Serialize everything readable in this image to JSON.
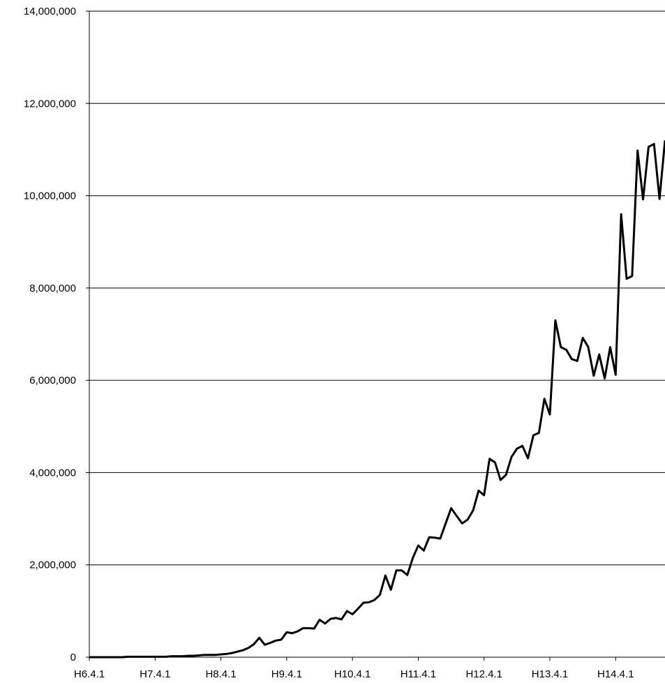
{
  "chart_data": {
    "type": "line",
    "title": "",
    "xlabel": "",
    "ylabel": "",
    "ylim": [
      0,
      14000000
    ],
    "yticks": [
      0,
      2000000,
      4000000,
      6000000,
      8000000,
      10000000,
      12000000,
      14000000
    ],
    "ytick_labels": [
      "0",
      "2,000,000",
      "4,000,000",
      "6,000,000",
      "8,000,000",
      "10,000,000",
      "12,000,000",
      "14,000,000"
    ],
    "xtick_labels": [
      "H6.4.1",
      "H7.4.1",
      "H8.4.1",
      "H9.4.1",
      "H10.4.1",
      "H11.4.1",
      "H12.4.1",
      "H13.4.1",
      "H14.4.1"
    ],
    "grid": true,
    "legend": "none",
    "line_color": "#000000",
    "series": [
      {
        "values": [
          0,
          0,
          0,
          0,
          0,
          0,
          0,
          10000,
          10000,
          10000,
          10000,
          10000,
          10000,
          10000,
          10000,
          20000,
          20000,
          20000,
          30000,
          30000,
          40000,
          50000,
          50000,
          50000,
          60000,
          70000,
          90000,
          120000,
          150000,
          200000,
          280000,
          420000,
          270000,
          310000,
          360000,
          380000,
          540000,
          520000,
          560000,
          630000,
          630000,
          620000,
          810000,
          730000,
          830000,
          850000,
          820000,
          1000000,
          930000,
          1050000,
          1180000,
          1190000,
          1240000,
          1350000,
          1770000,
          1460000,
          1880000,
          1880000,
          1780000,
          2150000,
          2420000,
          2310000,
          2600000,
          2590000,
          2570000,
          2900000,
          3230000,
          3060000,
          2900000,
          2980000,
          3180000,
          3610000,
          3510000,
          4300000,
          4220000,
          3840000,
          3950000,
          4340000,
          4520000,
          4580000,
          4310000,
          4810000,
          4860000,
          5600000,
          5260000,
          7300000,
          6720000,
          6660000,
          6460000,
          6420000,
          6920000,
          6720000,
          6100000,
          6560000,
          6040000,
          6720000,
          6120000,
          9600000,
          8200000,
          8260000,
          10980000,
          9920000,
          11060000,
          11120000,
          9930000,
          11200000
        ]
      }
    ]
  }
}
